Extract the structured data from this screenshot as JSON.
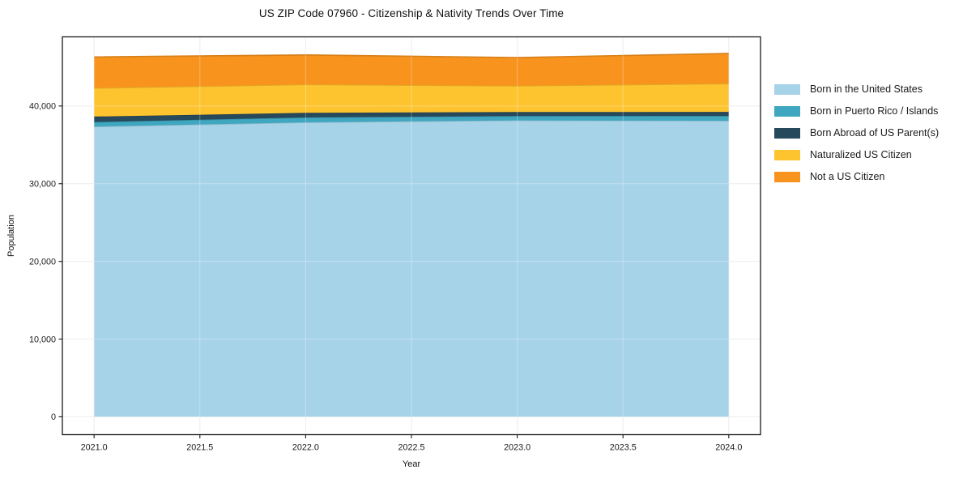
{
  "chart_data": {
    "type": "area",
    "stacked": true,
    "title": "US ZIP Code 07960 - Citizenship & Nativity Trends Over Time",
    "xlabel": "Year",
    "ylabel": "Population",
    "x": [
      2021,
      2022,
      2023,
      2024
    ],
    "series": [
      {
        "name": "Born in the United States",
        "color": "#a7d3e8",
        "values": [
          37350,
          37900,
          38150,
          38100
        ]
      },
      {
        "name": "Born in Puerto Rico / Islands",
        "color": "#3fa7c0",
        "values": [
          590,
          630,
          560,
          620
        ]
      },
      {
        "name": "Born Abroad of US Parent(s)",
        "color": "#27495c",
        "values": [
          700,
          590,
          520,
          520
        ]
      },
      {
        "name": "Naturalized US Citizen",
        "color": "#fdc42f",
        "values": [
          3670,
          3650,
          3370,
          3640
        ]
      },
      {
        "name": "Not a US Citizen",
        "color": "#f8941e",
        "values": [
          4000,
          3800,
          3630,
          3880
        ]
      }
    ],
    "xlim": [
      2020.85,
      2024.15
    ],
    "ylim": [
      -2300,
      48900
    ],
    "xticks": {
      "values": [
        2021.0,
        2021.5,
        2022.0,
        2022.5,
        2023.0,
        2023.5,
        2024.0
      ],
      "labels": [
        "2021.0",
        "2021.5",
        "2022.0",
        "2022.5",
        "2023.0",
        "2023.5",
        "2024.0"
      ]
    },
    "yticks": {
      "values": [
        0,
        10000,
        20000,
        30000,
        40000
      ],
      "labels": [
        "0",
        "10,000",
        "20,000",
        "30,000",
        "40,000"
      ]
    },
    "grid": true,
    "legend_position": "right of plot, frameless"
  }
}
